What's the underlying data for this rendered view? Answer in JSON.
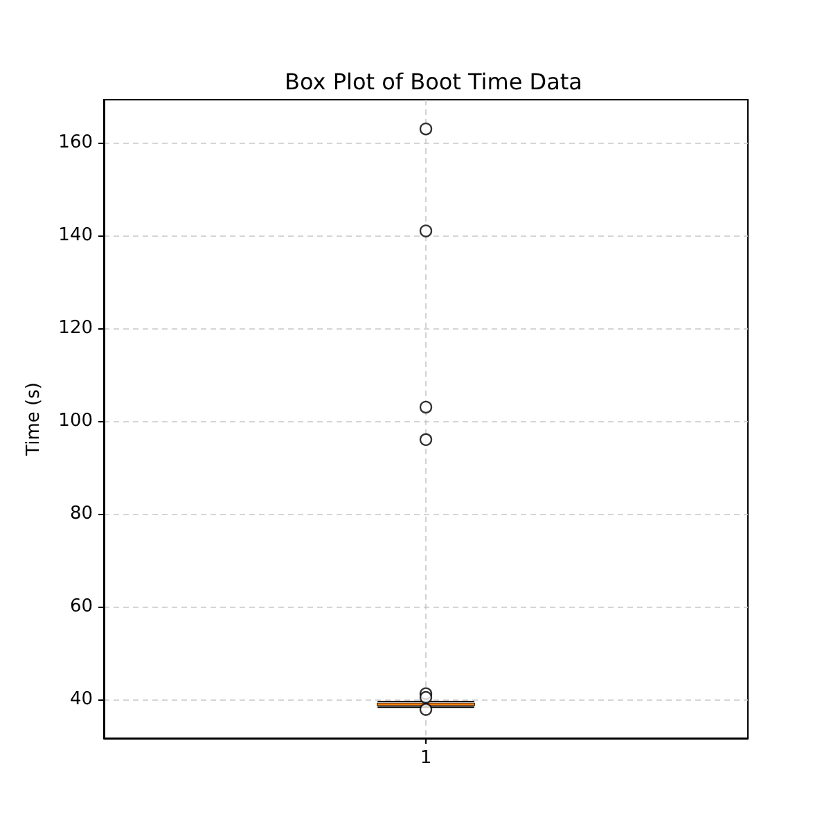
{
  "chart_data": {
    "type": "box",
    "title": "Box Plot of Boot Time Data",
    "ylabel": "Time (s)",
    "categories": [
      "1"
    ],
    "color": "#000000",
    "boxes": [
      {
        "low": 38.3,
        "q1": 38.7,
        "median": 38.9,
        "q3": 39.1,
        "high": 39.5,
        "outliers": [
          163,
          141,
          103,
          96,
          41.2,
          40.4,
          37.8
        ]
      }
    ],
    "ylim": [
      31.6,
      169.3
    ],
    "yticks": [
      40,
      60,
      80,
      100,
      120,
      140,
      160
    ],
    "grid": true
  }
}
